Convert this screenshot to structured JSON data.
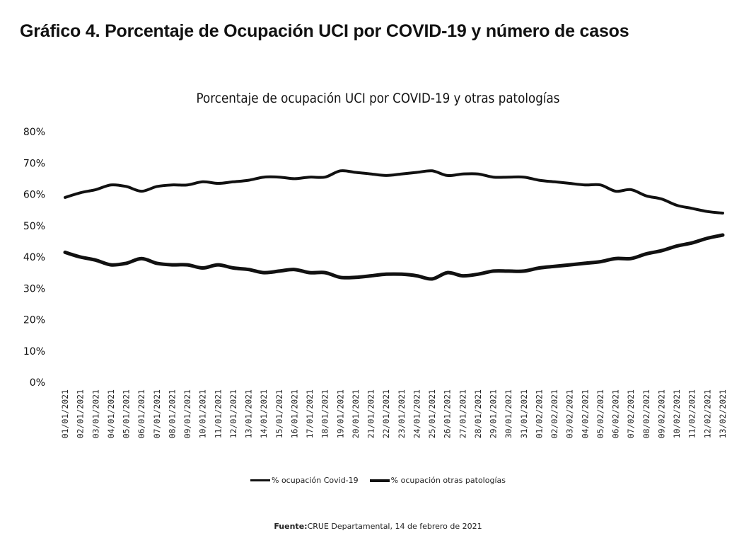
{
  "page_title": "Gráfico 4. Porcentaje de Ocupación UCI por COVID-19 y número de casos",
  "source": {
    "label": "Fuente:",
    "text": "CRUE Departamental, 14 de febrero de 2021"
  },
  "chart_data": {
    "type": "line",
    "title": "Porcentaje de ocupación UCI por COVID-19 y otras patologías",
    "xlabel": "",
    "ylabel": "",
    "ylim": [
      0,
      80
    ],
    "y_ticks": [
      "0%",
      "10%",
      "20%",
      "30%",
      "40%",
      "50%",
      "60%",
      "70%",
      "80%"
    ],
    "grid": false,
    "legend_position": "bottom",
    "categories": [
      "01/01/2021",
      "02/01/2021",
      "03/01/2021",
      "04/01/2021",
      "05/01/2021",
      "06/01/2021",
      "07/01/2021",
      "08/01/2021",
      "09/01/2021",
      "10/01/2021",
      "11/01/2021",
      "12/01/2021",
      "13/01/2021",
      "14/01/2021",
      "15/01/2021",
      "16/01/2021",
      "17/01/2021",
      "18/01/2021",
      "19/01/2021",
      "20/01/2021",
      "21/01/2021",
      "22/01/2021",
      "23/01/2021",
      "24/01/2021",
      "25/01/2021",
      "26/01/2021",
      "27/01/2021",
      "28/01/2021",
      "29/01/2021",
      "30/01/2021",
      "31/01/2021",
      "01/02/2021",
      "02/02/2021",
      "03/02/2021",
      "04/02/2021",
      "05/02/2021",
      "06/02/2021",
      "07/02/2021",
      "08/02/2021",
      "09/02/2021",
      "10/02/2021",
      "11/02/2021",
      "12/02/2021",
      "13/02/2021"
    ],
    "series": [
      {
        "name": "% ocupación Covid-19",
        "color": "#111111",
        "values": [
          59,
          60.5,
          61.5,
          63,
          62.5,
          61,
          62.5,
          63,
          63,
          64,
          63.5,
          64,
          64.5,
          65.5,
          65.5,
          65,
          65.5,
          65.5,
          67.5,
          67,
          66.5,
          66,
          66.5,
          67,
          67.5,
          66,
          66.5,
          66.5,
          65.5,
          65.5,
          65.5,
          64.5,
          64,
          63.5,
          63,
          63,
          61,
          61.5,
          59.5,
          58.5,
          56.5,
          55.5,
          54.5,
          54
        ]
      },
      {
        "name": "% ocupación otras patologías",
        "color": "#111111",
        "values": [
          41.5,
          40,
          39,
          37.5,
          38,
          39.5,
          38,
          37.5,
          37.5,
          36.5,
          37.5,
          36.5,
          36,
          35,
          35.5,
          36,
          35,
          35,
          33.5,
          33.5,
          34,
          34.5,
          34.5,
          34,
          33,
          35,
          34,
          34.5,
          35.5,
          35.5,
          35.5,
          36.5,
          37,
          37.5,
          38,
          38.5,
          39.5,
          39.5,
          41,
          42,
          43.5,
          44.5,
          46,
          47
        ]
      }
    ]
  }
}
